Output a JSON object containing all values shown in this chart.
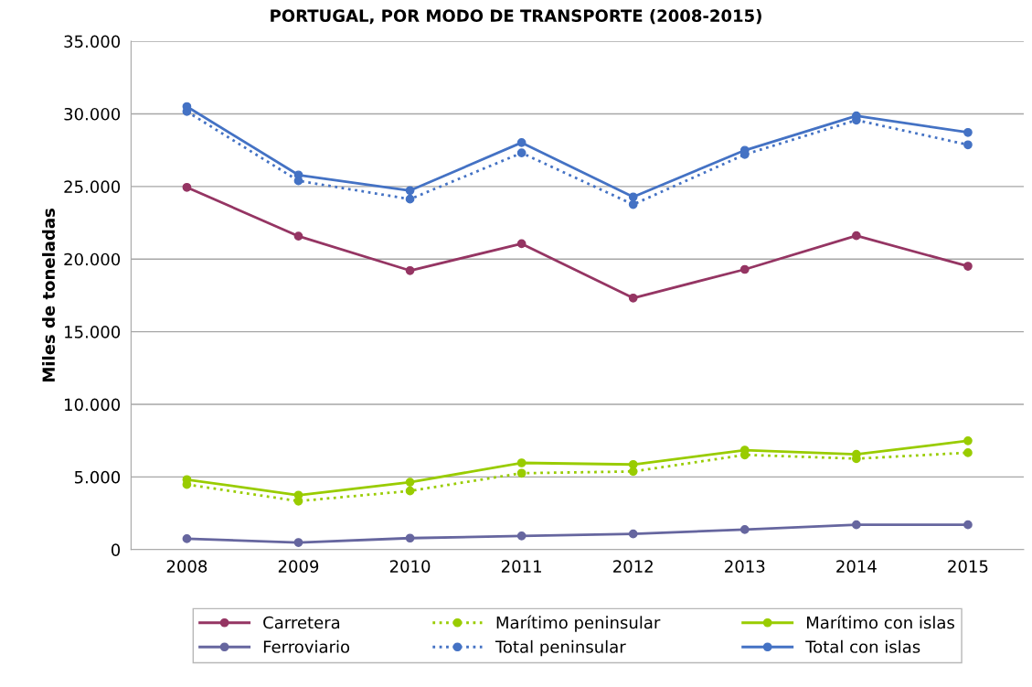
{
  "chart_data": {
    "type": "line",
    "title": "PORTUGAL, POR MODO DE TRANSPORTE (2008-2015)",
    "ylabel": "Miles de toneladas",
    "categories": [
      "2008",
      "2009",
      "2010",
      "2011",
      "2012",
      "2013",
      "2014",
      "2015"
    ],
    "series": [
      {
        "name": "Carretera",
        "color": "#953563",
        "line_style": "solid",
        "values": [
          24940,
          21580,
          19210,
          21060,
          17320,
          19290,
          21610,
          19510
        ]
      },
      {
        "name": "Marítimo peninsular",
        "color": "#99cc00",
        "line_style": "dotted",
        "values": [
          4480,
          3340,
          4040,
          5260,
          5380,
          6520,
          6260,
          6670
        ]
      },
      {
        "name": "Marítimo con islas",
        "color": "#99cc00",
        "line_style": "solid",
        "values": [
          4820,
          3750,
          4640,
          5970,
          5860,
          6850,
          6560,
          7490
        ]
      },
      {
        "name": "Ferroviario",
        "color": "#66669f",
        "line_style": "solid",
        "values": [
          750,
          490,
          790,
          940,
          1080,
          1380,
          1710,
          1710
        ]
      },
      {
        "name": "Total peninsular",
        "color": "#4472c4",
        "line_style": "dotted",
        "values": [
          30160,
          25390,
          24130,
          27310,
          23760,
          27200,
          29570,
          27870
        ]
      },
      {
        "name": "Total con islas",
        "color": "#4472c4",
        "line_style": "solid",
        "values": [
          30500,
          25790,
          24720,
          28020,
          24280,
          27490,
          29860,
          28720
        ]
      }
    ],
    "ylim": [
      0,
      35000
    ],
    "yticks": [
      0,
      {
        "value": 5000,
        "label": "5.000"
      },
      {
        "value": 10000,
        "label": "10.000"
      },
      {
        "value": 15000,
        "label": "15.000"
      },
      {
        "value": 20000,
        "label": "20.000"
      },
      {
        "value": 25000,
        "label": "25.000"
      },
      {
        "value": 30000,
        "label": "30.000"
      },
      {
        "value": 35000,
        "label": "35.000"
      }
    ],
    "grid": "y",
    "legend": "bottom",
    "marker": "circle"
  }
}
